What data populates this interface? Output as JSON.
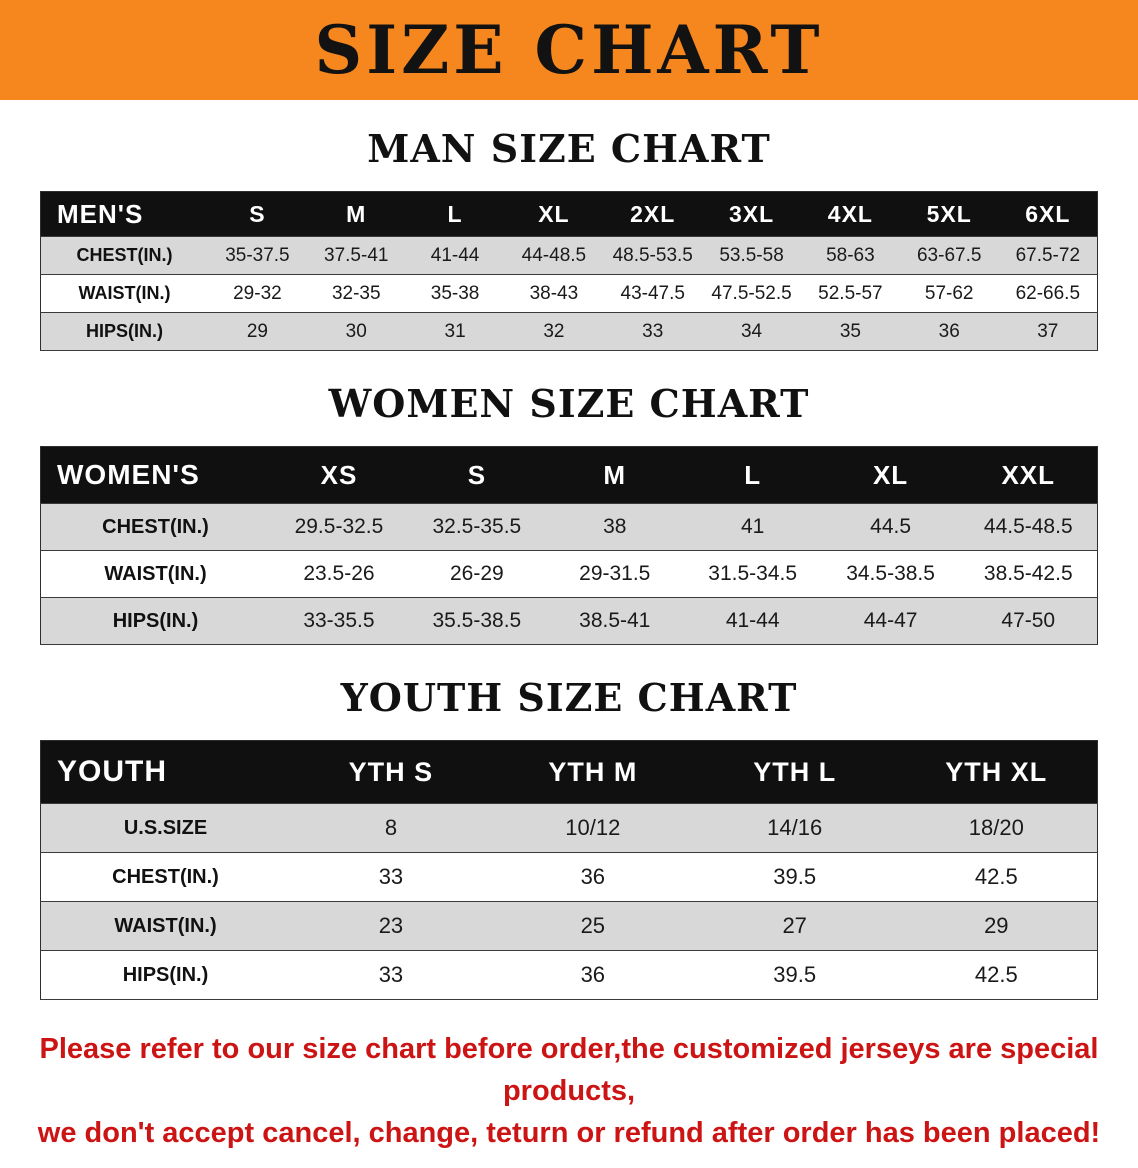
{
  "banner": {
    "title": "SIZE CHART"
  },
  "sections": [
    {
      "id": "men",
      "heading": "MAN SIZE CHART",
      "columns": [
        "MEN'S",
        "S",
        "M",
        "L",
        "XL",
        "2XL",
        "3XL",
        "4XL",
        "5XL",
        "6XL"
      ],
      "rows": [
        [
          "CHEST(IN.)",
          "35-37.5",
          "37.5-41",
          "41-44",
          "44-48.5",
          "48.5-53.5",
          "53.5-58",
          "58-63",
          "63-67.5",
          "67.5-72"
        ],
        [
          "WAIST(IN.)",
          "29-32",
          "32-35",
          "35-38",
          "38-43",
          "43-47.5",
          "47.5-52.5",
          "52.5-57",
          "57-62",
          "62-66.5"
        ],
        [
          "HIPS(IN.)",
          "29",
          "30",
          "31",
          "32",
          "33",
          "34",
          "35",
          "36",
          "37"
        ]
      ]
    },
    {
      "id": "women",
      "heading": "WOMEN SIZE CHART",
      "columns": [
        "WOMEN'S",
        "XS",
        "S",
        "M",
        "L",
        "XL",
        "XXL"
      ],
      "rows": [
        [
          "CHEST(IN.)",
          "29.5-32.5",
          "32.5-35.5",
          "38",
          "41",
          "44.5",
          "44.5-48.5"
        ],
        [
          "WAIST(IN.)",
          "23.5-26",
          "26-29",
          "29-31.5",
          "31.5-34.5",
          "34.5-38.5",
          "38.5-42.5"
        ],
        [
          "HIPS(IN.)",
          "33-35.5",
          "35.5-38.5",
          "38.5-41",
          "41-44",
          "44-47",
          "47-50"
        ]
      ]
    },
    {
      "id": "youth",
      "heading": "YOUTH SIZE CHART",
      "columns": [
        "YOUTH",
        "YTH S",
        "YTH M",
        "YTH L",
        "YTH XL"
      ],
      "rows": [
        [
          "U.S.SIZE",
          "8",
          "10/12",
          "14/16",
          "18/20"
        ],
        [
          "CHEST(IN.)",
          "33",
          "36",
          "39.5",
          "42.5"
        ],
        [
          "WAIST(IN.)",
          "23",
          "25",
          "27",
          "29"
        ],
        [
          "HIPS(IN.)",
          "33",
          "36",
          "39.5",
          "42.5"
        ]
      ]
    }
  ],
  "footer": {
    "line1": "Please refer to our size chart before order,the customized jerseys are special products,",
    "line2": "we don't accept cancel, change, teturn or refund after order has been placed!"
  },
  "colors": {
    "banner_bg": "#f6871e",
    "banner_text": "#121212",
    "heading_text": "#111111",
    "header_bg": "#101010",
    "header_text": "#ffffff",
    "row_alt": "#d8d8d8",
    "footer_text": "#cc1414"
  }
}
